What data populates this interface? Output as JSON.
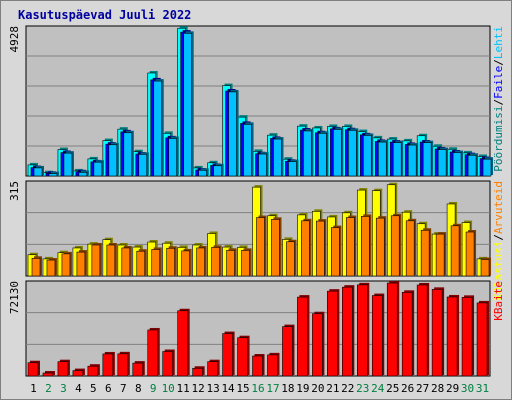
{
  "title": "Kasutuspäevad Juuli 2022",
  "colors": {
    "frame_bg": "#d8d8d8",
    "plot_bg": "#c0c0c0",
    "title_text": "#0000a0",
    "weekday_text": "#000000",
    "weekend_text": "#008040",
    "pages_front": "#00c0ff",
    "pages_shadow": "#006080",
    "hits_front": "#00ffff",
    "hits_shadow": "#008080",
    "files_front": "#0000ff",
    "files_shadow": "#000080",
    "visits_front": "#ffff00",
    "visits_shadow": "#808000",
    "sites_front": "#ff8000",
    "sites_shadow": "#804000",
    "kbytes_front": "#ff0000",
    "kbytes_shadow": "#800000"
  },
  "chart_data": [
    {
      "type": "bar",
      "panel": "top",
      "ymax_label": "4928",
      "ylim": [
        0,
        4928
      ],
      "categories": [
        "1",
        "2",
        "3",
        "4",
        "5",
        "6",
        "7",
        "8",
        "9",
        "10",
        "11",
        "12",
        "13",
        "14",
        "15",
        "16",
        "17",
        "18",
        "19",
        "20",
        "21",
        "22",
        "23",
        "24",
        "25",
        "26",
        "27",
        "28",
        "29",
        "30",
        "31"
      ],
      "weekend_days": [
        "2",
        "3",
        "9",
        "10",
        "16",
        "17",
        "23",
        "24",
        "30",
        "31"
      ],
      "series": [
        {
          "name": "Pöördumisi",
          "color_key": "hits",
          "values": [
            370,
            110,
            880,
            170,
            570,
            1180,
            1560,
            810,
            3430,
            1420,
            4920,
            270,
            440,
            3010,
            1960,
            820,
            1360,
            560,
            1660,
            1600,
            1650,
            1650,
            1480,
            1270,
            1230,
            1170,
            1340,
            990,
            890,
            770,
            650
          ]
        },
        {
          "name": "Faile",
          "color_key": "files",
          "values": [
            280,
            90,
            780,
            140,
            470,
            1060,
            1470,
            730,
            3200,
            1270,
            4790,
            200,
            350,
            2830,
            1750,
            740,
            1250,
            490,
            1530,
            1440,
            1570,
            1540,
            1370,
            1150,
            1130,
            1050,
            1130,
            900,
            800,
            710,
            580
          ]
        },
        {
          "name": "Lehti",
          "color_key": "pages",
          "values": [
            270,
            80,
            760,
            120,
            460,
            1040,
            1440,
            720,
            3160,
            1250,
            4750,
            190,
            340,
            2800,
            1720,
            730,
            1230,
            480,
            1500,
            1420,
            1550,
            1520,
            1350,
            1130,
            1110,
            1030,
            1110,
            880,
            780,
            690,
            560
          ]
        }
      ]
    },
    {
      "type": "bar",
      "panel": "middle",
      "ymax_label": "315",
      "ylim": [
        0,
        315
      ],
      "series": [
        {
          "name": "Külastusi",
          "color_key": "visits",
          "values": [
            72,
            58,
            79,
            95,
            108,
            123,
            105,
            98,
            115,
            111,
            97,
            105,
            144,
            98,
            97,
            301,
            204,
            124,
            207,
            219,
            200,
            214,
            291,
            289,
            309,
            216,
            177,
            142,
            244,
            181,
            58
          ]
        },
        {
          "name": "Arvuteid",
          "color_key": "sites",
          "values": [
            60,
            54,
            75,
            81,
            105,
            105,
            95,
            84,
            90,
            94,
            85,
            95,
            97,
            87,
            87,
            198,
            192,
            116,
            187,
            186,
            164,
            198,
            202,
            196,
            204,
            187,
            155,
            142,
            170,
            149,
            56
          ]
        }
      ]
    },
    {
      "type": "bar",
      "panel": "bottom",
      "ymax_label": "72130",
      "ylim": [
        0,
        72130
      ],
      "series": [
        {
          "name": "KBaite",
          "color_key": "kbytes",
          "values": [
            10300,
            2300,
            11100,
            4200,
            7600,
            17100,
            17200,
            10000,
            35700,
            19000,
            50600,
            6000,
            11100,
            32900,
            29700,
            15500,
            16400,
            38300,
            61200,
            48300,
            65800,
            68900,
            70700,
            62400,
            72100,
            64900,
            70600,
            67200,
            61300,
            61000,
            56700
          ]
        }
      ]
    }
  ],
  "axis_labels": {
    "top_right": [
      {
        "text": "Pöördumisi",
        "color_key": "hits"
      },
      {
        "text": "Faile",
        "color_key": "files"
      },
      {
        "text": "Lehti",
        "color_key": "pages"
      }
    ],
    "middle_right": [
      {
        "text": "Külastusi",
        "color_key": "visits"
      },
      {
        "text": "Arvuteid",
        "color_key": "sites"
      }
    ],
    "bottom_right": [
      {
        "text": "KBaite",
        "color_key": "kbytes"
      }
    ],
    "separator": "/"
  }
}
